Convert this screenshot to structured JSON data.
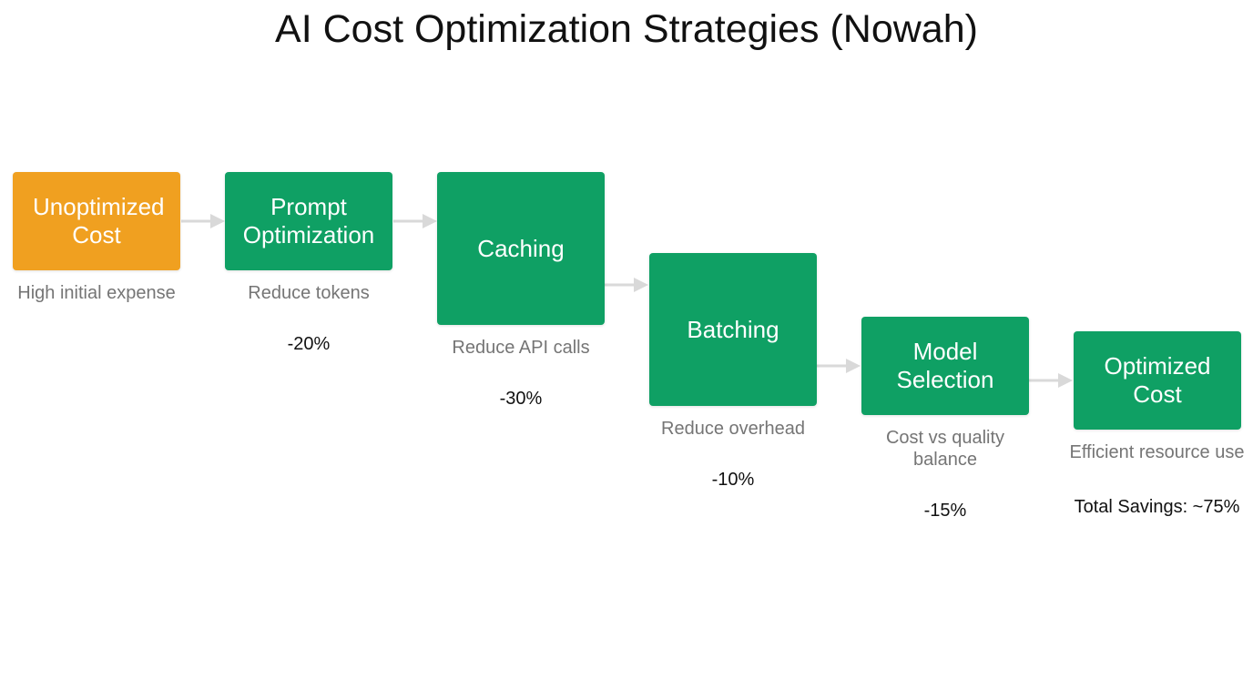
{
  "title": "AI Cost Optimization Strategies (Nowah)",
  "colors": {
    "start_box": "#F0A020",
    "step_box": "#0FA064",
    "arrow": "#D9D9D9"
  },
  "steps": [
    {
      "label": "Unoptimized Cost",
      "description": "High initial expense"
    },
    {
      "label": "Prompt Optimization",
      "description": "Reduce tokens",
      "savings": "-20%"
    },
    {
      "label": "Caching",
      "description": "Reduce API calls",
      "savings": "-30%"
    },
    {
      "label": "Batching",
      "description": "Reduce overhead",
      "savings": "-10%"
    },
    {
      "label": "Model Selection",
      "description": "Cost vs quality balance",
      "savings": "-15%"
    },
    {
      "label": "Optimized Cost",
      "description": "Efficient resource use",
      "total": "Total Savings: ~75%"
    }
  ]
}
